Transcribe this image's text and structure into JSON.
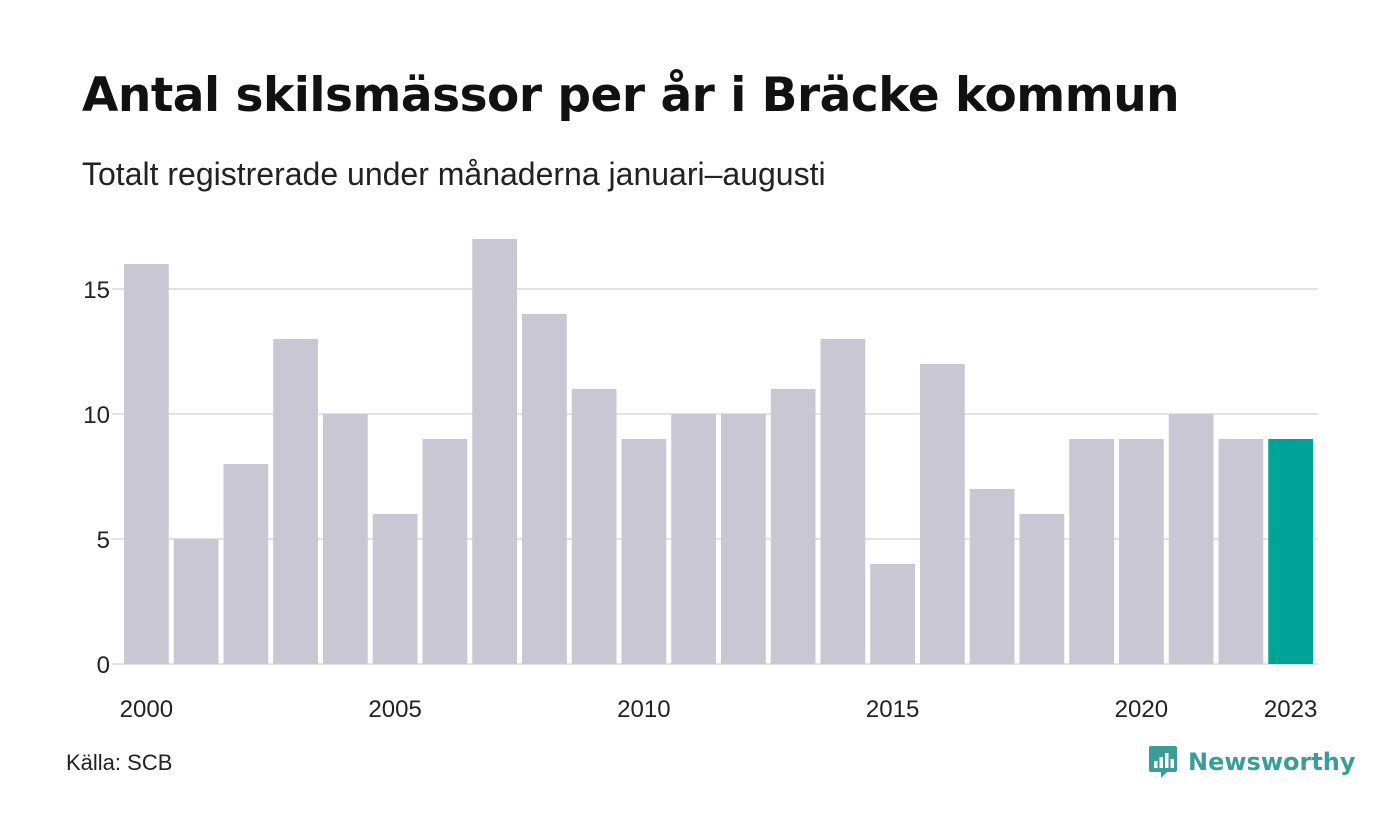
{
  "header": {
    "title": "Antal skilsmässor per år i Bräcke kommun",
    "subtitle": "Totalt registrerade under månaderna januari–augusti"
  },
  "footer": {
    "source": "Källa: SCB",
    "brand": "Newsworthy",
    "brand_icon": "bar-chart-speech-bubble-icon"
  },
  "colors": {
    "bar": "#c8c7d3",
    "highlight": "#00a398",
    "grid": "#e3e3e3",
    "brand": "#3a9d98",
    "text": "#222222"
  },
  "chart_data": {
    "type": "bar",
    "title": "Antal skilsmässor per år i Bräcke kommun",
    "subtitle": "Totalt registrerade under månaderna januari–augusti",
    "categories": [
      "2000",
      "2001",
      "2002",
      "2003",
      "2004",
      "2005",
      "2006",
      "2007",
      "2008",
      "2009",
      "2010",
      "2011",
      "2012",
      "2013",
      "2014",
      "2015",
      "2016",
      "2017",
      "2018",
      "2019",
      "2020",
      "2021",
      "2022",
      "2023"
    ],
    "values": [
      16,
      5,
      8,
      13,
      10,
      6,
      9,
      17,
      14,
      11,
      9,
      10,
      10,
      11,
      13,
      4,
      12,
      7,
      6,
      9,
      9,
      10,
      9,
      9
    ],
    "highlight_category": "2023",
    "x_tick_labels": [
      "2000",
      "2005",
      "2010",
      "2015",
      "2020",
      "2023"
    ],
    "y_ticks": [
      0,
      5,
      10,
      15
    ],
    "ylim": [
      0,
      17
    ],
    "xlabel": "",
    "ylabel": "",
    "grid": true,
    "legend": "none"
  }
}
